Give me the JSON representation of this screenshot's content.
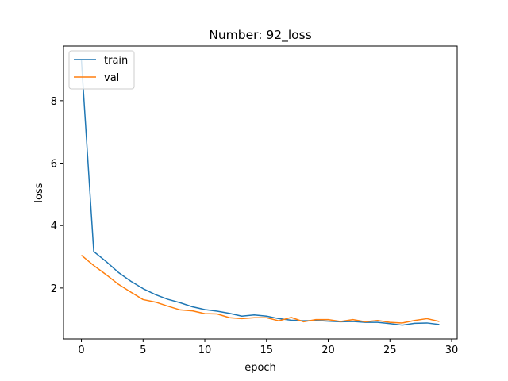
{
  "chart_data": {
    "type": "line",
    "title": "Number: 92_loss",
    "xlabel": "epoch",
    "ylabel": "loss",
    "xlim": [
      -1.45,
      30.45
    ],
    "ylim": [
      0.37,
      9.75
    ],
    "xticks": [
      0,
      5,
      10,
      15,
      20,
      25,
      30
    ],
    "yticks": [
      2,
      4,
      6,
      8
    ],
    "grid": false,
    "legend_position": "upper-left",
    "x": [
      0,
      1,
      2,
      3,
      4,
      5,
      6,
      7,
      8,
      9,
      10,
      11,
      12,
      13,
      14,
      15,
      16,
      17,
      18,
      19,
      20,
      21,
      22,
      23,
      24,
      25,
      26,
      27,
      28,
      29
    ],
    "series": [
      {
        "name": "train",
        "color": "#1f77b4",
        "values": [
          9.3,
          3.17,
          2.85,
          2.5,
          2.22,
          1.98,
          1.79,
          1.64,
          1.53,
          1.4,
          1.31,
          1.26,
          1.19,
          1.1,
          1.14,
          1.1,
          1.02,
          0.97,
          0.95,
          0.96,
          0.94,
          0.92,
          0.93,
          0.9,
          0.9,
          0.86,
          0.81,
          0.87,
          0.88,
          0.83
        ]
      },
      {
        "name": "val",
        "color": "#ff7f0e",
        "values": [
          3.05,
          2.72,
          2.43,
          2.12,
          1.87,
          1.63,
          1.55,
          1.42,
          1.3,
          1.27,
          1.18,
          1.17,
          1.05,
          1.02,
          1.05,
          1.05,
          0.95,
          1.06,
          0.92,
          0.99,
          0.99,
          0.93,
          0.99,
          0.92,
          0.96,
          0.9,
          0.88,
          0.96,
          1.02,
          0.93
        ]
      }
    ]
  }
}
